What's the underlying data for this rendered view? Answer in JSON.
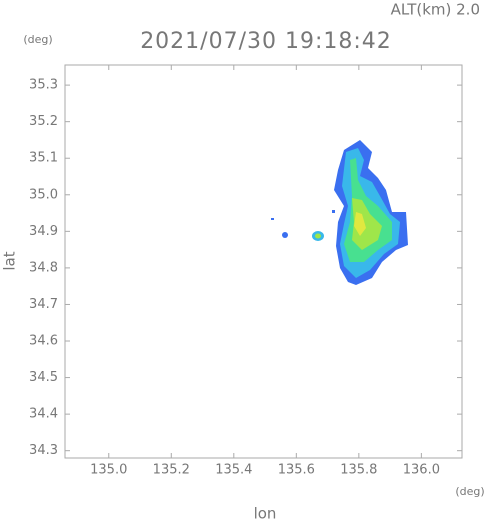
{
  "chart_data": {
    "type": "map",
    "title": "2021/07/30 19:18:42",
    "subtitle": "ALT(km)  2.0",
    "y_unit": "(deg)",
    "x_unit": "(deg)",
    "xlabel": "lon",
    "ylabel": "lat",
    "xlim": [
      134.86,
      136.13
    ],
    "ylim": [
      34.28,
      35.355
    ],
    "xticks": [
      {
        "value": 135,
        "label": "135.0"
      },
      135.2,
      135.4,
      135.6,
      135.8,
      {
        "value": 136,
        "label": "136.0"
      }
    ],
    "yticks": [
      34.3,
      34.4,
      34.5,
      34.6,
      34.7,
      34.8,
      34.9,
      {
        "value": 35,
        "label": "35.0"
      },
      35.1,
      35.2,
      35.3
    ]
  }
}
